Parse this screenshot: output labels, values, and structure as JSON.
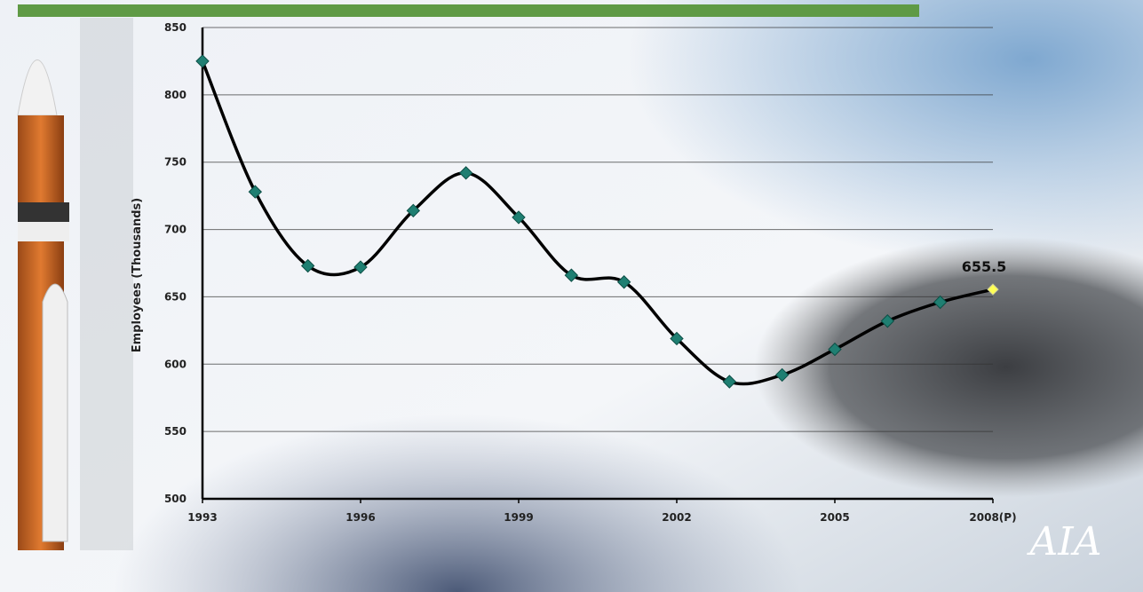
{
  "chart_data": {
    "type": "line",
    "y_label": "Employees (Thousands)",
    "x": [
      1993,
      1994,
      1995,
      1996,
      1997,
      1998,
      1999,
      2000,
      2001,
      2002,
      2003,
      2004,
      2005,
      2006,
      2007,
      2008
    ],
    "series": [
      {
        "name": "Employees",
        "color": "#000000",
        "marker_color": "#1f7f72",
        "highlight_marker_color": "#ffff55",
        "values": [
          825,
          728,
          673,
          672,
          714,
          742,
          709,
          666,
          661,
          619,
          587,
          592,
          611,
          632,
          646,
          655.5
        ]
      }
    ],
    "xlim": [
      1993,
      2008
    ],
    "xticks": [
      1993,
      1996,
      1999,
      2002,
      2005,
      {
        "value": 2008,
        "label": "2008(P)"
      }
    ],
    "ylim": [
      500,
      850
    ],
    "yticks": [
      500,
      550,
      600,
      650,
      700,
      750,
      800,
      850
    ],
    "grid": true,
    "smooth": true,
    "logo": "AIA"
  }
}
